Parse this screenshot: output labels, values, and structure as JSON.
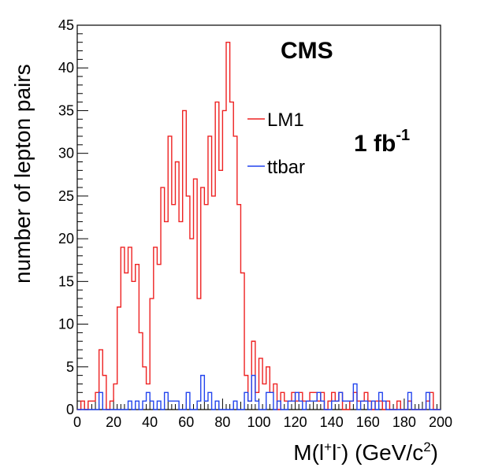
{
  "chart_data": {
    "type": "histogram",
    "experiment_label": "CMS",
    "luminosity": {
      "value": "1 fb",
      "exponent": "-1"
    },
    "xlabel": {
      "base": "M(l",
      "sup1": "+",
      "mid": "l",
      "sup2": "-",
      "tail": ") (GeV/c",
      "sup3": "2",
      "end": ")"
    },
    "ylabel": "number of lepton pairs",
    "xlim": [
      0,
      200
    ],
    "ylim": [
      0,
      45
    ],
    "bin_width": 2,
    "x_ticks": [
      "0",
      "20",
      "40",
      "60",
      "80",
      "100",
      "120",
      "140",
      "160",
      "180",
      "200"
    ],
    "y_ticks": [
      "0",
      "5",
      "10",
      "15",
      "20",
      "25",
      "30",
      "35",
      "40",
      "45"
    ],
    "x_tick_values": [
      0,
      20,
      40,
      60,
      80,
      100,
      120,
      140,
      160,
      180,
      200
    ],
    "y_tick_values": [
      0,
      5,
      10,
      15,
      20,
      25,
      30,
      35,
      40,
      45
    ],
    "series": [
      {
        "name": "LM1",
        "color": "#ee2222",
        "values": [
          0,
          1,
          0,
          1,
          1,
          2,
          7,
          4,
          0,
          1,
          3,
          12,
          19,
          16,
          19,
          15,
          17,
          9,
          5,
          3,
          13,
          19,
          17,
          26,
          22,
          32,
          24,
          29,
          22,
          35,
          25,
          20,
          27,
          13,
          26,
          24,
          32,
          25,
          36,
          28,
          35,
          43,
          36,
          32,
          24,
          16,
          4,
          1,
          8,
          2,
          6,
          3,
          5,
          2,
          3,
          0,
          2,
          1,
          1,
          2,
          1,
          2,
          1,
          1,
          2,
          2,
          1,
          2,
          0,
          1,
          2,
          1,
          2,
          0,
          0,
          1,
          2,
          1,
          1,
          2,
          1,
          0,
          1,
          1,
          0,
          1,
          0,
          0,
          1,
          0,
          0,
          1,
          0,
          0,
          0,
          0,
          1,
          2,
          0,
          0
        ]
      },
      {
        "name": "ttbar",
        "color": "#2244ee",
        "values": [
          0,
          0,
          0,
          0,
          0,
          0,
          2,
          0,
          0,
          0,
          0,
          0,
          0,
          0,
          1,
          0,
          1,
          0,
          1,
          2,
          1,
          0,
          1,
          0,
          2,
          1,
          1,
          1,
          0,
          0,
          2,
          0,
          0,
          1,
          4,
          1,
          2,
          0,
          1,
          0,
          0,
          0,
          0,
          1,
          0,
          0,
          2,
          1,
          4,
          1,
          0,
          0,
          2,
          2,
          0,
          1,
          0,
          0,
          1,
          1,
          2,
          1,
          0,
          1,
          1,
          1,
          2,
          1,
          0,
          0,
          1,
          1,
          2,
          1,
          1,
          1,
          3,
          0,
          1,
          1,
          0,
          1,
          0,
          2,
          1,
          0,
          0,
          0,
          0,
          0,
          0,
          2,
          0,
          0,
          0,
          0,
          2,
          0,
          0,
          0
        ]
      }
    ]
  }
}
